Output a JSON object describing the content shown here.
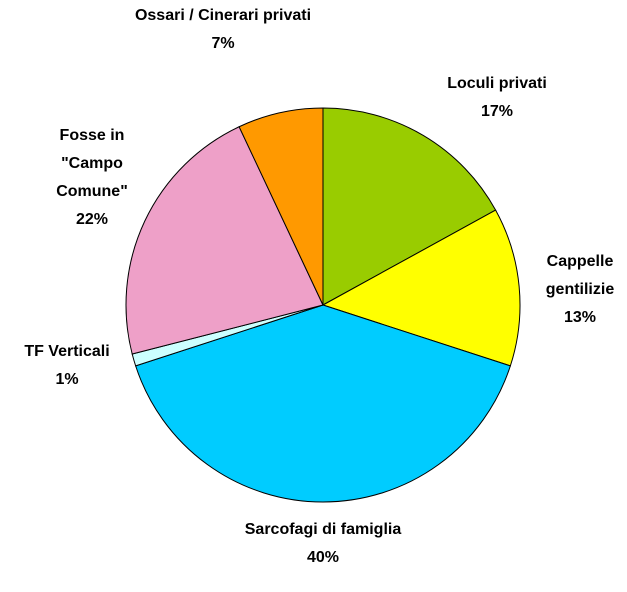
{
  "chart_data": {
    "type": "pie",
    "categories": [
      "Loculi privati",
      "Cappelle gentilizie",
      "Sarcofagi di famiglia",
      "TF Verticali",
      "Fosse in \"Campo Comune\"",
      "Ossari / Cinerari privati"
    ],
    "values": [
      17,
      13,
      40,
      1,
      22,
      7
    ],
    "value_labels": [
      "17%",
      "13%",
      "40%",
      "1%",
      "22%",
      "7%"
    ],
    "colors": [
      "#99cc00",
      "#ffff00",
      "#00ccff",
      "#ccffff",
      "#eea0c8",
      "#ff9900"
    ]
  }
}
